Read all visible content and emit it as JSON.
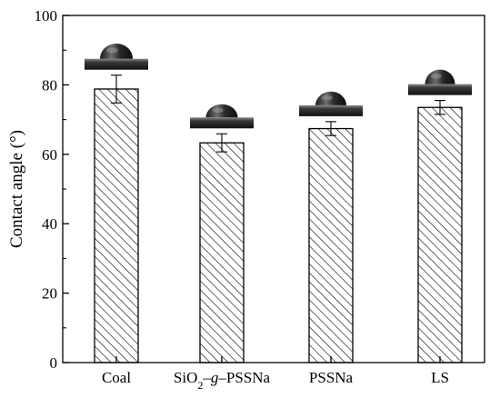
{
  "chart_data": {
    "type": "bar",
    "categories": [
      "Coal",
      "SiO2–g–PSSNa",
      "PSSNa",
      "LS"
    ],
    "category_labels": {
      "coal": "Coal",
      "sio2": {
        "base": "SiO",
        "sub": "2",
        "dash1": "–",
        "g": "g",
        "rest": "–PSSNa"
      },
      "pssna": "PSSNa",
      "ls": "LS"
    },
    "values": [
      78.8,
      63.3,
      67.4,
      73.5
    ],
    "errors": [
      4.0,
      2.6,
      2.0,
      2.0
    ],
    "ylabel": "Contact angle (°)",
    "xlabel": "",
    "title": "",
    "ylim": [
      0,
      100
    ],
    "yticks": [
      "0",
      "20",
      "40",
      "60",
      "80",
      "100"
    ],
    "bar_fill": "diagonal hatch",
    "grid": false,
    "colors": {
      "bar_edge": "#000000",
      "hatch": "#000000",
      "background": "#ffffff"
    },
    "insets": [
      "droplet-photo",
      "droplet-photo",
      "droplet-photo",
      "droplet-photo"
    ]
  }
}
